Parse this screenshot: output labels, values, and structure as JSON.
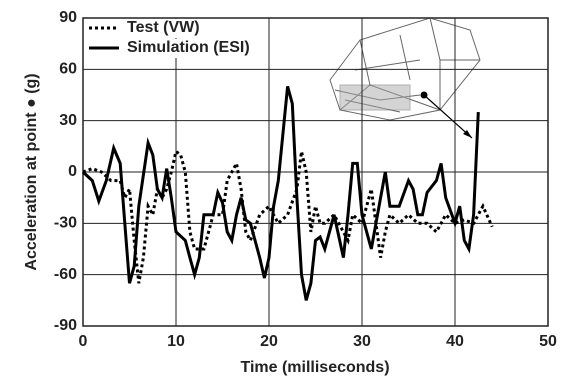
{
  "chart_data": {
    "type": "line",
    "xlabel": "Time (milliseconds)",
    "ylabel": "Acceleration at point ● (g)",
    "xlim": [
      0,
      50
    ],
    "xticks": [
      0,
      10,
      20,
      30,
      40,
      50
    ],
    "ylim": [
      -90,
      90
    ],
    "yticks": [
      -90,
      -60,
      -30,
      0,
      30,
      60,
      90
    ],
    "grid": true,
    "legend": "upper left",
    "series": [
      {
        "name": "Test (VW)",
        "color": "#000000",
        "dash": "dotted",
        "x": [
          0,
          1,
          2,
          3,
          4,
          4.5,
          5,
          5.5,
          6,
          6.5,
          7,
          7.5,
          8,
          8.5,
          9,
          9.5,
          10,
          10.5,
          11,
          11.5,
          12,
          13,
          13.5,
          14,
          15,
          15.5,
          16,
          16.5,
          17,
          17.5,
          18,
          19,
          20,
          20.5,
          21,
          22,
          23,
          23.5,
          24,
          24.5,
          25,
          25.5,
          26,
          27,
          28,
          28.5,
          29,
          30,
          31,
          32,
          32.5,
          33,
          34,
          35,
          36,
          37,
          38,
          39,
          40,
          41,
          42,
          43,
          44
        ],
        "values": [
          0,
          2,
          0,
          -5,
          -5,
          -15,
          -10,
          -40,
          -65,
          -50,
          -20,
          -25,
          -10,
          -15,
          -10,
          0,
          12,
          10,
          0,
          -35,
          -45,
          -45,
          -35,
          -25,
          -25,
          -5,
          0,
          5,
          -10,
          -35,
          -40,
          -25,
          -20,
          -25,
          -30,
          -25,
          -10,
          12,
          0,
          -35,
          -20,
          -30,
          -30,
          -25,
          -35,
          -40,
          -25,
          -30,
          -10,
          -50,
          -35,
          -25,
          -30,
          -25,
          -30,
          -30,
          -35,
          -25,
          -30,
          -28,
          -30,
          -20,
          -32
        ]
      },
      {
        "name": "Simulation (ESI)",
        "color": "#000000",
        "dash": "solid",
        "x": [
          0,
          1,
          1.7,
          2.5,
          3.3,
          4,
          4.5,
          5,
          5.5,
          6,
          7,
          7.5,
          8,
          8.5,
          9,
          9.5,
          10,
          11,
          11.5,
          12,
          12.5,
          13,
          14,
          14.5,
          15,
          15.5,
          16,
          16.5,
          17,
          17.5,
          18,
          19,
          19.5,
          20,
          20.5,
          21,
          22,
          22.5,
          23,
          23.5,
          24,
          24.5,
          25,
          25.5,
          26,
          27,
          28,
          28.5,
          29,
          29.5,
          30,
          31,
          32,
          32.5,
          33,
          34,
          35,
          35.5,
          36,
          36.5,
          37,
          38,
          38.5,
          39,
          40,
          40.5,
          41,
          41.5,
          42,
          42.5
        ],
        "values": [
          0,
          -5,
          -17,
          -5,
          14,
          5,
          -30,
          -65,
          -55,
          -20,
          17,
          10,
          -10,
          -15,
          2,
          -15,
          -35,
          -40,
          -50,
          -60,
          -50,
          -25,
          -25,
          -12,
          -18,
          -35,
          -40,
          -25,
          -15,
          -28,
          -30,
          -50,
          -62,
          -50,
          -20,
          -5,
          50,
          40,
          -15,
          -60,
          -75,
          -65,
          -40,
          -38,
          -45,
          -25,
          -50,
          -25,
          5,
          5,
          -25,
          -45,
          -15,
          0,
          -20,
          -20,
          -5,
          -10,
          -25,
          -25,
          -12,
          -5,
          5,
          -15,
          -30,
          -20,
          -40,
          -45,
          -25,
          35
        ]
      }
    ]
  }
}
